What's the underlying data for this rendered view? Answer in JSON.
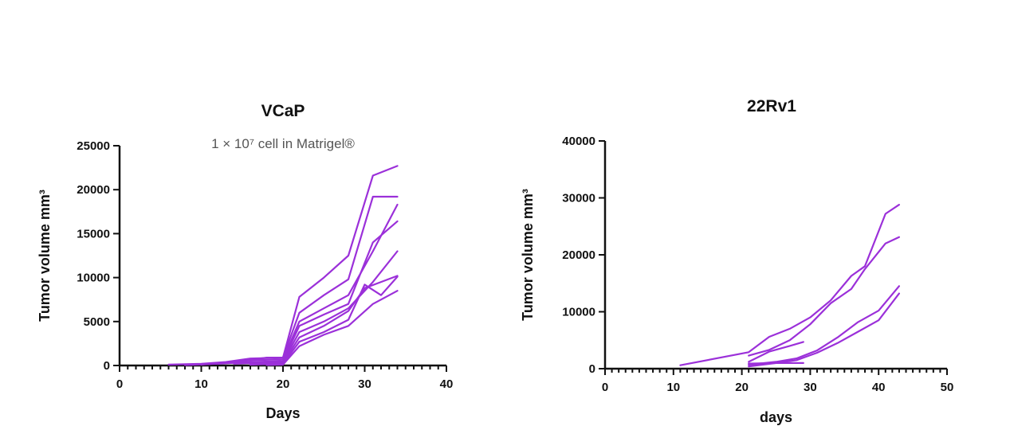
{
  "chart_data": [
    {
      "type": "line",
      "title": "VCaP",
      "subtitle": "1 × 10⁷ cell in Matrigel®",
      "xlabel": "Days",
      "ylabel": "Tumor volume mm³",
      "xlim": [
        0,
        40
      ],
      "ylim": [
        0,
        25000
      ],
      "xticks": [
        0,
        10,
        20,
        30,
        40
      ],
      "yticks": [
        0,
        5000,
        10000,
        15000,
        20000,
        25000
      ],
      "grid": false,
      "color": "#9b30d9",
      "series": [
        {
          "x": [
            6,
            10,
            13,
            16,
            20,
            22,
            25,
            28,
            31,
            34
          ],
          "y": [
            100,
            200,
            400,
            800,
            900,
            7800,
            10000,
            12500,
            21600,
            22700
          ]
        },
        {
          "x": [
            8,
            12,
            15,
            18,
            20,
            22,
            25,
            28,
            31,
            34
          ],
          "y": [
            50,
            200,
            500,
            900,
            900,
            6000,
            8000,
            9800,
            19200,
            19200
          ]
        },
        {
          "x": [
            10,
            13,
            16,
            20,
            22,
            25,
            28,
            31,
            34
          ],
          "y": [
            100,
            300,
            600,
            700,
            5000,
            6500,
            8000,
            13000,
            18300
          ]
        },
        {
          "x": [
            12,
            16,
            20,
            22,
            25,
            28,
            31,
            34
          ],
          "y": [
            200,
            400,
            500,
            4500,
            5800,
            7000,
            14000,
            16400
          ]
        },
        {
          "x": [
            14,
            17,
            20,
            22,
            25,
            28,
            31,
            34
          ],
          "y": [
            200,
            300,
            400,
            3800,
            5000,
            6500,
            9500,
            13000
          ]
        },
        {
          "x": [
            16,
            20,
            22,
            25,
            28,
            30,
            32,
            34
          ],
          "y": [
            100,
            300,
            3200,
            4500,
            6200,
            8800,
            9500,
            10200
          ]
        },
        {
          "x": [
            16,
            20,
            22,
            25,
            28,
            30,
            32,
            34
          ],
          "y": [
            100,
            200,
            2700,
            3800,
            5200,
            9200,
            8000,
            10100
          ]
        },
        {
          "x": [
            18,
            20,
            22,
            25,
            28,
            31,
            34
          ],
          "y": [
            50,
            100,
            2200,
            3500,
            4500,
            7000,
            8500
          ]
        }
      ]
    },
    {
      "type": "line",
      "title": "22Rv1",
      "subtitle": "",
      "xlabel": "days",
      "ylabel": "Tumor volume mm³",
      "xlim": [
        0,
        50
      ],
      "ylim": [
        0,
        40000
      ],
      "xticks": [
        0,
        10,
        20,
        30,
        40,
        50
      ],
      "yticks": [
        0,
        10000,
        20000,
        30000,
        40000
      ],
      "grid": false,
      "color": "#9b30d9",
      "series": [
        {
          "x": [
            11,
            21,
            24,
            27,
            30,
            33,
            36,
            38,
            41,
            43
          ],
          "y": [
            600,
            2900,
            5600,
            7000,
            9000,
            12000,
            16300,
            18000,
            27200,
            28800
          ]
        },
        {
          "x": [
            21,
            24,
            27,
            30,
            33,
            36,
            38,
            41,
            43
          ],
          "y": [
            2300,
            3300,
            5000,
            7800,
            11500,
            14000,
            17500,
            22000,
            23100
          ]
        },
        {
          "x": [
            21,
            24,
            27,
            29
          ],
          "y": [
            1200,
            3000,
            4000,
            4700
          ]
        },
        {
          "x": [
            21,
            25,
            28,
            31,
            34,
            37,
            40,
            43
          ],
          "y": [
            700,
            1200,
            1800,
            3200,
            5500,
            8200,
            10200,
            14500
          ]
        },
        {
          "x": [
            21,
            25,
            28,
            31,
            34,
            37,
            40,
            43
          ],
          "y": [
            400,
            1000,
            1500,
            2800,
            4500,
            6500,
            8500,
            13200
          ]
        },
        {
          "x": [
            21,
            25,
            29
          ],
          "y": [
            900,
            1000,
            1000
          ]
        }
      ]
    }
  ]
}
